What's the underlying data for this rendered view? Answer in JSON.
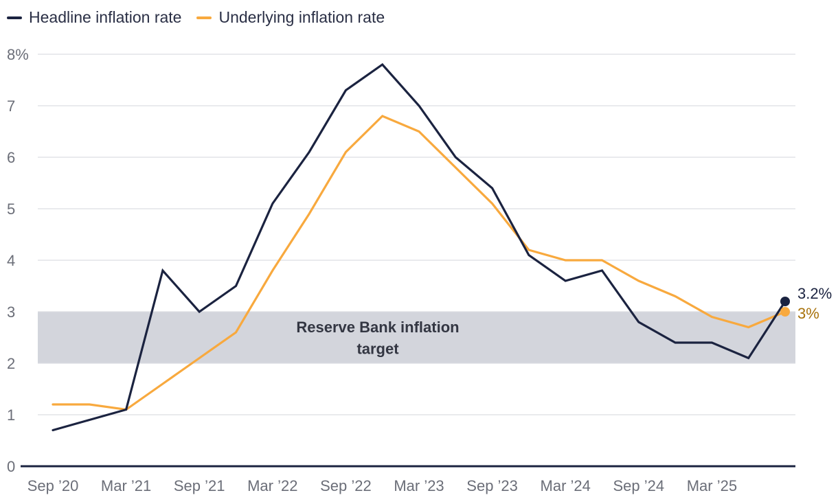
{
  "chart_data": {
    "type": "line",
    "title": "",
    "xlabel": "",
    "ylabel": "",
    "ylim": [
      0,
      8
    ],
    "yticks": [
      0,
      1,
      2,
      3,
      4,
      5,
      6,
      7,
      8
    ],
    "ytick_labels": [
      "0",
      "1",
      "2",
      "3",
      "4",
      "5",
      "6",
      "7",
      "8%"
    ],
    "xtick_labels": [
      "Sep ’20",
      "Mar ’21",
      "Sep ’21",
      "Mar ’22",
      "Sep ’22",
      "Mar ’23",
      "Sep ’23",
      "Mar ’24",
      "Sep ’24",
      "Mar ’25"
    ],
    "quarters": [
      "Sep 20",
      "Dec 20",
      "Mar 21",
      "Jun 21",
      "Sep 21",
      "Dec 21",
      "Mar 22",
      "Jun 22",
      "Sep 22",
      "Dec 22",
      "Mar 23",
      "Jun 23",
      "Sep 23",
      "Dec 23",
      "Mar 24",
      "Jun 24",
      "Sep 24",
      "Dec 24",
      "Mar 25",
      "Jun 25",
      "Sep 25"
    ],
    "series": [
      {
        "name": "Headline inflation rate",
        "color": "#1b2340",
        "values": [
          0.7,
          0.9,
          1.1,
          3.8,
          3.0,
          3.5,
          5.1,
          6.1,
          7.3,
          7.8,
          7.0,
          6.0,
          5.4,
          4.1,
          3.6,
          3.8,
          2.8,
          2.4,
          2.4,
          2.1,
          3.2
        ],
        "end_label": "3.2%",
        "end_label_color": "#1b2340"
      },
      {
        "name": "Underlying inflation rate",
        "color": "#f8a93e",
        "values": [
          1.2,
          1.2,
          1.1,
          1.6,
          2.1,
          2.6,
          3.8,
          4.9,
          6.1,
          6.8,
          6.5,
          5.8,
          5.1,
          4.2,
          4.0,
          4.0,
          3.6,
          3.3,
          2.9,
          2.7,
          3.0
        ],
        "end_label": "3%",
        "end_label_color": "#a8720b"
      }
    ],
    "target_band": {
      "range": [
        2,
        3
      ],
      "label_line1": "Reserve Bank inflation",
      "label_line2": "target",
      "color": "#d3d5dc"
    },
    "grid": true,
    "legend_position": "top-left"
  }
}
